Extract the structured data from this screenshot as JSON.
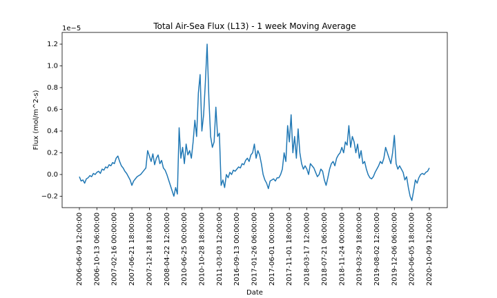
{
  "chart_data": {
    "type": "line",
    "title": "Total Air-Sea Flux (L13) - 1 week Moving Average",
    "x_label": "Date",
    "y_label": "Flux (mol/m^2-s)",
    "y_offset_label": "1e−5",
    "color": "#1f77b4",
    "ylim": [
      -0.305,
      1.308
    ],
    "yticks": [
      {
        "value": -0.2,
        "label": "−0.2"
      },
      {
        "value": 0,
        "label": "0.0"
      },
      0.2,
      0.4,
      0.6,
      0.8,
      {
        "value": 1,
        "label": "1.0"
      },
      1.2
    ],
    "categories": [
      "2006-06-09 12:00:00",
      null,
      null,
      null,
      null,
      null,
      null,
      null,
      null,
      null,
      "2006-10-13 06:00:00",
      null,
      null,
      null,
      null,
      null,
      null,
      null,
      null,
      null,
      "2007-02-16 00:00:00",
      null,
      null,
      null,
      null,
      null,
      null,
      null,
      null,
      null,
      "2007-06-21 18:00:00",
      null,
      null,
      null,
      null,
      null,
      null,
      null,
      null,
      null,
      "2007-12-18 18:00:00",
      null,
      null,
      null,
      null,
      null,
      null,
      null,
      null,
      null,
      "2008-04-22 12:00:00",
      null,
      null,
      null,
      null,
      null,
      null,
      null,
      null,
      null,
      "2010-06-25 00:00:00",
      null,
      null,
      null,
      null,
      null,
      null,
      null,
      null,
      null,
      "2010-10-28 18:00:00",
      null,
      null,
      null,
      null,
      null,
      null,
      null,
      null,
      null,
      "2011-03-03 12:00:00",
      null,
      null,
      null,
      null,
      null,
      null,
      null,
      null,
      null,
      "2016-09-13 00:00:00",
      null,
      null,
      null,
      null,
      null,
      null,
      null,
      null,
      null,
      "2017-01-26 06:00:00",
      null,
      null,
      null,
      null,
      null,
      null,
      null,
      null,
      null,
      "2017-06-01 00:00:00",
      null,
      null,
      null,
      null,
      null,
      null,
      null,
      null,
      null,
      "2017-11-01 18:00:00",
      null,
      null,
      null,
      null,
      null,
      null,
      null,
      null,
      null,
      "2018-03-17 12:00:00",
      null,
      null,
      null,
      null,
      null,
      null,
      null,
      null,
      null,
      "2018-07-21 06:00:00",
      null,
      null,
      null,
      null,
      null,
      null,
      null,
      null,
      null,
      "2018-11-24 00:00:00",
      null,
      null,
      null,
      null,
      null,
      null,
      null,
      null,
      null,
      "2019-03-29 18:00:00",
      null,
      null,
      null,
      null,
      null,
      null,
      null,
      null,
      null,
      "2019-08-02 12:00:00",
      null,
      null,
      null,
      null,
      null,
      null,
      null,
      null,
      null,
      "2019-12-06 06:00:00",
      null,
      null,
      null,
      null,
      null,
      null,
      null,
      null,
      null,
      "2020-06-05 18:00:00",
      null,
      null,
      null,
      null,
      null,
      null,
      null,
      null,
      null,
      "2020-10-09 12:00:00"
    ],
    "values": [
      -0.02,
      -0.06,
      -0.05,
      -0.08,
      -0.04,
      -0.03,
      -0.01,
      -0.02,
      0.01,
      0.0,
      0.02,
      0.03,
      0.01,
      0.05,
      0.04,
      0.07,
      0.06,
      0.09,
      0.08,
      0.11,
      0.1,
      0.15,
      0.17,
      0.12,
      0.08,
      0.06,
      0.03,
      0.01,
      -0.02,
      -0.05,
      -0.1,
      -0.06,
      -0.04,
      -0.02,
      -0.01,
      0.0,
      0.02,
      0.04,
      0.06,
      0.22,
      0.17,
      0.12,
      0.19,
      0.09,
      0.15,
      0.18,
      0.1,
      0.13,
      0.06,
      0.04,
      0.0,
      -0.05,
      -0.1,
      -0.15,
      -0.2,
      -0.12,
      -0.18,
      0.43,
      0.15,
      0.25,
      0.1,
      0.28,
      0.18,
      0.22,
      0.15,
      0.3,
      0.5,
      0.35,
      0.75,
      0.92,
      0.4,
      0.55,
      0.85,
      1.2,
      0.7,
      0.35,
      0.25,
      0.3,
      0.62,
      0.35,
      0.38,
      -0.1,
      -0.05,
      -0.12,
      0.0,
      -0.03,
      0.02,
      0.0,
      0.04,
      0.03,
      0.05,
      0.07,
      0.06,
      0.1,
      0.09,
      0.13,
      0.15,
      0.12,
      0.18,
      0.2,
      0.28,
      0.15,
      0.22,
      0.18,
      0.1,
      0.0,
      -0.05,
      -0.08,
      -0.13,
      -0.06,
      -0.05,
      -0.04,
      -0.06,
      -0.03,
      -0.03,
      0.0,
      0.05,
      0.2,
      0.12,
      0.45,
      0.3,
      0.55,
      0.2,
      0.35,
      0.15,
      0.42,
      0.2,
      0.1,
      0.05,
      0.08,
      0.05,
      0.0,
      0.1,
      0.08,
      0.06,
      0.02,
      -0.02,
      0.0,
      0.05,
      0.03,
      -0.05,
      -0.1,
      -0.03,
      0.05,
      0.1,
      0.12,
      0.08,
      0.15,
      0.18,
      0.2,
      0.25,
      0.2,
      0.3,
      0.27,
      0.45,
      0.25,
      0.35,
      0.3,
      0.2,
      0.28,
      0.15,
      0.22,
      0.1,
      0.12,
      0.05,
      0.0,
      -0.03,
      -0.04,
      -0.02,
      0.02,
      0.05,
      0.08,
      0.12,
      0.1,
      0.15,
      0.25,
      0.2,
      0.15,
      0.1,
      0.2,
      0.36,
      0.1,
      0.05,
      0.08,
      0.05,
      0.02,
      -0.05,
      -0.02,
      -0.12,
      -0.2,
      -0.24,
      -0.15,
      -0.05,
      -0.08,
      -0.03,
      0.0,
      0.01,
      0.0,
      0.02,
      0.03,
      0.06
    ]
  }
}
